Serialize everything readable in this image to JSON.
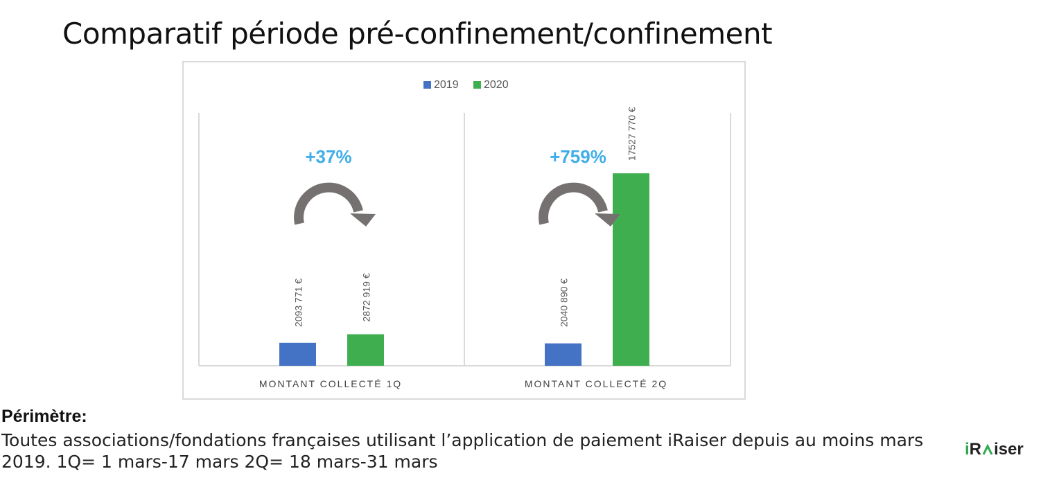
{
  "title": "Comparatif période pré-confinement/confinement",
  "chart_data": {
    "type": "bar",
    "categories": [
      "MONTANT COLLECTÉ 1Q",
      "MONTANT COLLECTÉ 2Q"
    ],
    "series": [
      {
        "name": "2019",
        "color": "#4472c4",
        "values": [
          2093771,
          2040890
        ],
        "labels": [
          "2093 771 €",
          "2040 890 €"
        ]
      },
      {
        "name": "2020",
        "color": "#3fae4f",
        "values": [
          2872919,
          17527770
        ],
        "labels": [
          "2872 919 €",
          "17527 770 €"
        ]
      }
    ],
    "ylim": [
      0,
      20000000
    ],
    "grid": false,
    "legend": "top-center",
    "annotations": [
      "+37%",
      "+759%"
    ],
    "annotation_color": "#41aee9",
    "arrow_color": "#767171"
  },
  "perimetre": {
    "label": "Périmètre:",
    "text": "Toutes associations/fondations françaises utilisant l’application de paiement iRaiser depuis au moins mars 2019. 1Q= 1 mars-17 mars  2Q= 18 mars-31 mars"
  },
  "logo": {
    "i": "i",
    "r": "R",
    "rest": "iser",
    "accent": "#2fa84f"
  }
}
